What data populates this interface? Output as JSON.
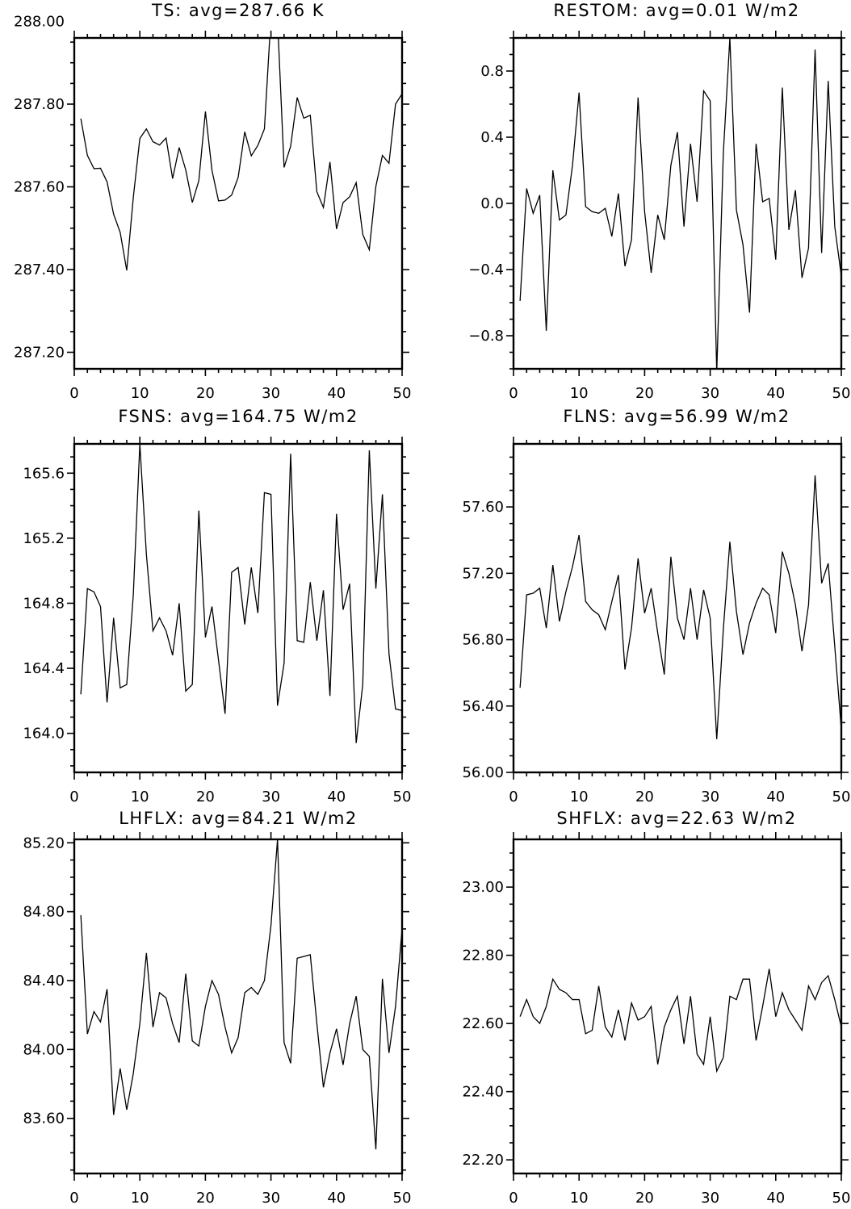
{
  "chart_data": [
    {
      "type": "line",
      "title": "TS: avg=287.66 K",
      "xlim": [
        0,
        50
      ],
      "ylim": [
        287.16,
        287.96
      ],
      "xticks": [
        0,
        10,
        20,
        30,
        40,
        50
      ],
      "xtick_labels": [
        "0",
        "10",
        "20",
        "30",
        "40",
        "50"
      ],
      "yticks": [
        287.2,
        287.4,
        287.6,
        287.8,
        288.0
      ],
      "ytick_labels": [
        "287.20",
        "287.40",
        "287.60",
        "287.80",
        "288.00"
      ],
      "grid": false,
      "x": [
        1,
        2,
        3,
        4,
        5,
        6,
        7,
        8,
        9,
        10,
        11,
        12,
        13,
        14,
        15,
        16,
        17,
        18,
        19,
        20,
        21,
        22,
        23,
        24,
        25,
        26,
        27,
        28,
        29,
        30,
        31,
        32,
        33,
        34,
        35,
        36,
        37,
        38,
        39,
        40,
        41,
        42,
        43,
        44,
        45,
        46,
        47,
        48,
        49,
        50
      ],
      "series": [
        {
          "values": [
            287.765,
            287.676,
            287.644,
            287.645,
            287.612,
            287.534,
            287.49,
            287.398,
            287.574,
            287.717,
            287.74,
            287.709,
            287.701,
            287.718,
            287.62,
            287.695,
            287.641,
            287.562,
            287.615,
            287.782,
            287.64,
            287.566,
            287.568,
            287.58,
            287.623,
            287.733,
            287.675,
            287.7,
            287.74,
            288.011,
            288.006,
            287.647,
            287.698,
            287.816,
            287.766,
            287.773,
            287.588,
            287.55,
            287.66,
            287.498,
            287.562,
            287.576,
            287.61,
            287.485,
            287.448,
            287.601,
            287.676,
            287.657,
            287.8,
            287.825
          ]
        }
      ]
    },
    {
      "type": "line",
      "title": "RESTOM: avg=0.01 W/m2",
      "xlim": [
        0,
        50
      ],
      "ylim": [
        -1.0,
        1.0
      ],
      "xticks": [
        0,
        10,
        20,
        30,
        40,
        50
      ],
      "xtick_labels": [
        "0",
        "10",
        "20",
        "30",
        "40",
        "50"
      ],
      "yticks": [
        -0.8,
        -0.4,
        0.0,
        0.4,
        0.8
      ],
      "ytick_labels": [
        "−0.8",
        "−0.4",
        "0.0",
        "0.4",
        "0.8"
      ],
      "grid": false,
      "x": [
        1,
        2,
        3,
        4,
        5,
        6,
        7,
        8,
        9,
        10,
        11,
        12,
        13,
        14,
        15,
        16,
        17,
        18,
        19,
        20,
        21,
        22,
        23,
        24,
        25,
        26,
        27,
        28,
        29,
        30,
        31,
        32,
        33,
        34,
        35,
        36,
        37,
        38,
        39,
        40,
        41,
        42,
        43,
        44,
        45,
        46,
        47,
        48,
        49,
        50
      ],
      "series": [
        {
          "values": [
            -0.59,
            0.09,
            -0.06,
            0.05,
            -0.77,
            0.2,
            -0.1,
            -0.07,
            0.23,
            0.67,
            -0.02,
            -0.05,
            -0.06,
            -0.03,
            -0.2,
            0.06,
            -0.38,
            -0.22,
            0.64,
            -0.05,
            -0.42,
            -0.07,
            -0.22,
            0.23,
            0.43,
            -0.14,
            0.36,
            0.01,
            0.68,
            0.62,
            -1.02,
            0.3,
            1.0,
            -0.04,
            -0.25,
            -0.66,
            0.36,
            0.01,
            0.03,
            -0.34,
            0.7,
            -0.16,
            0.08,
            -0.45,
            -0.27,
            0.93,
            -0.3,
            0.74,
            -0.14,
            -0.44
          ]
        }
      ]
    },
    {
      "type": "line",
      "title": "FSNS: avg=164.75 W/m2",
      "xlim": [
        0,
        50
      ],
      "ylim": [
        163.76,
        165.78
      ],
      "xticks": [
        0,
        10,
        20,
        30,
        40,
        50
      ],
      "xtick_labels": [
        "0",
        "10",
        "20",
        "30",
        "40",
        "50"
      ],
      "yticks": [
        164.0,
        164.4,
        164.8,
        165.2,
        165.6
      ],
      "ytick_labels": [
        "164.0",
        "164.4",
        "164.8",
        "165.2",
        "165.6"
      ],
      "grid": false,
      "x": [
        1,
        2,
        3,
        4,
        5,
        6,
        7,
        8,
        9,
        10,
        11,
        12,
        13,
        14,
        15,
        16,
        17,
        18,
        19,
        20,
        21,
        22,
        23,
        24,
        25,
        26,
        27,
        28,
        29,
        30,
        31,
        32,
        33,
        34,
        35,
        36,
        37,
        38,
        39,
        40,
        41,
        42,
        43,
        44,
        45,
        46,
        47,
        48,
        49,
        50
      ],
      "series": [
        {
          "values": [
            164.24,
            164.89,
            164.87,
            164.78,
            164.19,
            164.71,
            164.28,
            164.3,
            164.85,
            165.78,
            165.1,
            164.63,
            164.71,
            164.63,
            164.48,
            164.8,
            164.26,
            164.3,
            165.37,
            164.59,
            164.78,
            164.45,
            164.12,
            164.99,
            165.02,
            164.67,
            165.02,
            164.74,
            165.48,
            165.47,
            164.17,
            164.43,
            165.72,
            164.57,
            164.56,
            164.93,
            164.57,
            164.88,
            164.23,
            165.35,
            164.76,
            164.92,
            163.94,
            164.3,
            165.74,
            164.89,
            165.47,
            164.49,
            164.15,
            164.14
          ]
        }
      ]
    },
    {
      "type": "line",
      "title": "FLNS: avg=56.99 W/m2",
      "xlim": [
        0,
        50
      ],
      "ylim": [
        56.0,
        57.98
      ],
      "xticks": [
        0,
        10,
        20,
        30,
        40,
        50
      ],
      "xtick_labels": [
        "0",
        "10",
        "20",
        "30",
        "40",
        "50"
      ],
      "yticks": [
        56.0,
        56.4,
        56.8,
        57.2,
        57.6
      ],
      "ytick_labels": [
        "56.00",
        "56.40",
        "56.80",
        "57.20",
        "57.60"
      ],
      "grid": false,
      "x": [
        1,
        2,
        3,
        4,
        5,
        6,
        7,
        8,
        9,
        10,
        11,
        12,
        13,
        14,
        15,
        16,
        17,
        18,
        19,
        20,
        21,
        22,
        23,
        24,
        25,
        26,
        27,
        28,
        29,
        30,
        31,
        32,
        33,
        34,
        35,
        36,
        37,
        38,
        39,
        40,
        41,
        42,
        43,
        44,
        45,
        46,
        47,
        48,
        49,
        50
      ],
      "series": [
        {
          "values": [
            56.51,
            57.07,
            57.08,
            57.11,
            56.87,
            57.25,
            56.91,
            57.09,
            57.24,
            57.43,
            57.03,
            56.98,
            56.95,
            56.86,
            57.03,
            57.19,
            56.62,
            56.87,
            57.29,
            56.96,
            57.11,
            56.84,
            56.59,
            57.3,
            56.93,
            56.8,
            57.11,
            56.8,
            57.1,
            56.93,
            56.2,
            56.86,
            57.39,
            56.97,
            56.71,
            56.9,
            57.02,
            57.11,
            57.07,
            56.84,
            57.33,
            57.2,
            57.01,
            56.73,
            57.01,
            57.79,
            57.14,
            57.26,
            56.76,
            56.26
          ]
        }
      ]
    },
    {
      "type": "line",
      "title": "LHFLX: avg=84.21 W/m2",
      "xlim": [
        0,
        50
      ],
      "ylim": [
        83.28,
        85.22
      ],
      "xticks": [
        0,
        10,
        20,
        30,
        40,
        50
      ],
      "xtick_labels": [
        "0",
        "10",
        "20",
        "30",
        "40",
        "50"
      ],
      "yticks": [
        83.6,
        84.0,
        84.4,
        84.8,
        85.2
      ],
      "ytick_labels": [
        "83.60",
        "84.00",
        "84.40",
        "84.80",
        "85.20"
      ],
      "grid": false,
      "x": [
        1,
        2,
        3,
        4,
        5,
        6,
        7,
        8,
        9,
        10,
        11,
        12,
        13,
        14,
        15,
        16,
        17,
        18,
        19,
        20,
        21,
        22,
        23,
        24,
        25,
        26,
        27,
        28,
        29,
        30,
        31,
        32,
        33,
        34,
        35,
        36,
        37,
        38,
        39,
        40,
        41,
        42,
        43,
        44,
        45,
        46,
        47,
        48,
        49,
        50
      ],
      "series": [
        {
          "values": [
            84.78,
            84.09,
            84.22,
            84.16,
            84.35,
            83.62,
            83.89,
            83.65,
            83.86,
            84.15,
            84.56,
            84.13,
            84.33,
            84.3,
            84.15,
            84.04,
            84.44,
            84.05,
            84.02,
            84.25,
            84.4,
            84.32,
            84.13,
            83.98,
            84.07,
            84.33,
            84.36,
            84.32,
            84.4,
            84.72,
            85.22,
            84.04,
            83.92,
            84.53,
            84.54,
            84.55,
            84.15,
            83.78,
            83.98,
            84.12,
            83.91,
            84.15,
            84.31,
            84.0,
            83.96,
            83.42,
            84.41,
            83.98,
            84.25,
            84.7
          ]
        }
      ]
    },
    {
      "type": "line",
      "title": "SHFLX: avg=22.63 W/m2",
      "xlim": [
        0,
        50
      ],
      "ylim": [
        22.16,
        23.14
      ],
      "xticks": [
        0,
        10,
        20,
        30,
        40,
        50
      ],
      "xtick_labels": [
        "0",
        "10",
        "20",
        "30",
        "40",
        "50"
      ],
      "yticks": [
        22.2,
        22.4,
        22.6,
        22.8,
        23.0
      ],
      "ytick_labels": [
        "22.20",
        "22.40",
        "22.60",
        "22.80",
        "23.00"
      ],
      "grid": false,
      "x": [
        1,
        2,
        3,
        4,
        5,
        6,
        7,
        8,
        9,
        10,
        11,
        12,
        13,
        14,
        15,
        16,
        17,
        18,
        19,
        20,
        21,
        22,
        23,
        24,
        25,
        26,
        27,
        28,
        29,
        30,
        31,
        32,
        33,
        34,
        35,
        36,
        37,
        38,
        39,
        40,
        41,
        42,
        43,
        44,
        45,
        46,
        47,
        48,
        49,
        50
      ],
      "series": [
        {
          "values": [
            22.62,
            22.67,
            22.62,
            22.6,
            22.65,
            22.73,
            22.7,
            22.69,
            22.67,
            22.67,
            22.57,
            22.58,
            22.71,
            22.59,
            22.56,
            22.64,
            22.55,
            22.66,
            22.61,
            22.62,
            22.65,
            22.48,
            22.59,
            22.64,
            22.68,
            22.54,
            22.68,
            22.51,
            22.48,
            22.62,
            22.46,
            22.5,
            22.68,
            22.67,
            22.73,
            22.73,
            22.55,
            22.65,
            22.76,
            22.62,
            22.69,
            22.64,
            22.61,
            22.58,
            22.71,
            22.67,
            22.72,
            22.74,
            22.67,
            22.59
          ]
        }
      ]
    }
  ]
}
